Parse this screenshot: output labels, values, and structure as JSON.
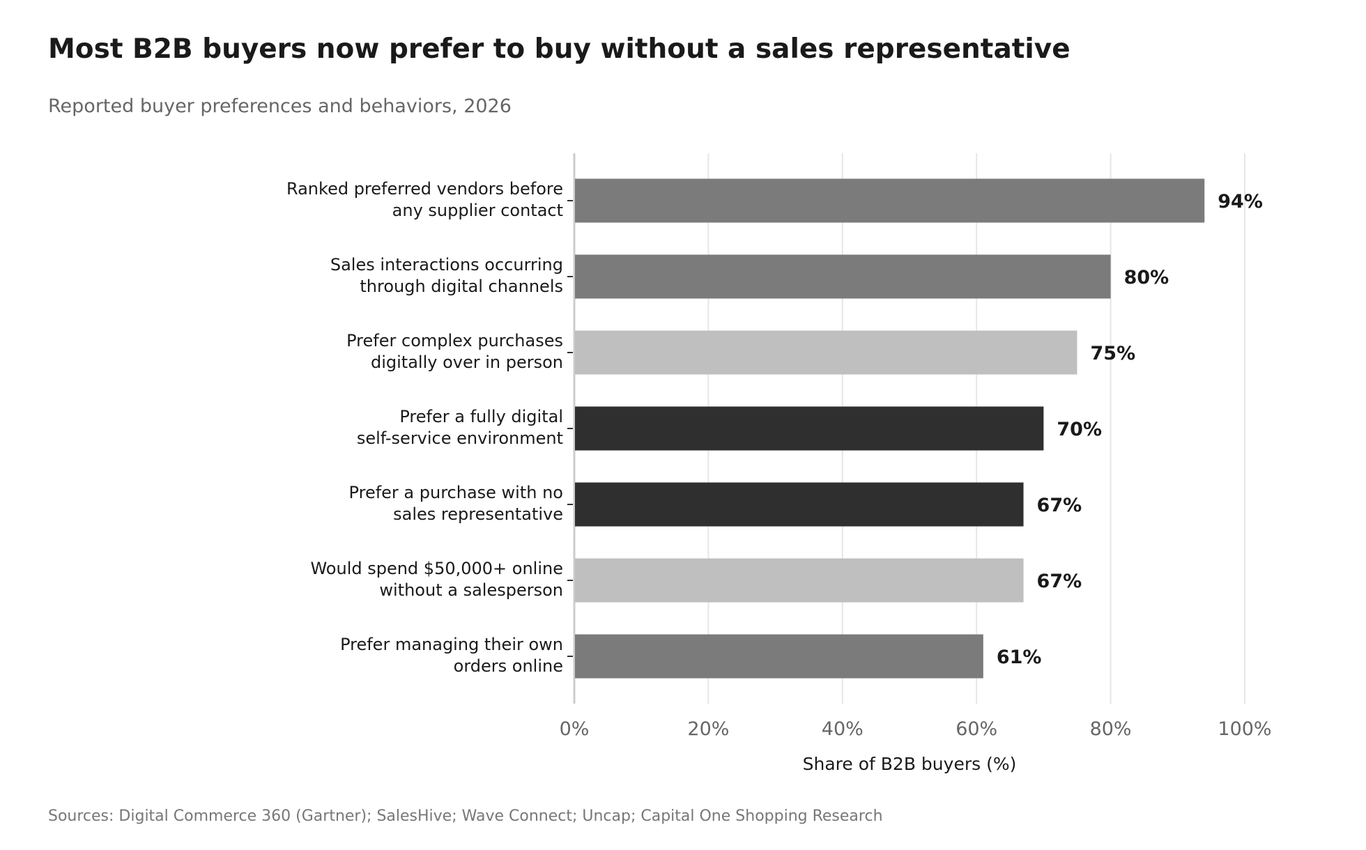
{
  "chart_data": {
    "type": "bar",
    "orientation": "horizontal",
    "title": "Most B2B buyers now prefer to buy without a sales representative",
    "subtitle": "Reported buyer preferences and behaviors, 2026",
    "xlabel": "Share of B2B buyers (%)",
    "ylabel": "",
    "xlim": [
      0,
      100
    ],
    "x_ticks": [
      "0%",
      "20%",
      "40%",
      "60%",
      "80%",
      "100%"
    ],
    "grid": "vertical",
    "categories": [
      [
        "Ranked preferred vendors before",
        "any supplier contact"
      ],
      [
        "Sales interactions occurring",
        "through digital channels"
      ],
      [
        "Prefer complex purchases",
        "digitally over in person"
      ],
      [
        "Prefer a fully digital",
        "self-service environment"
      ],
      [
        "Prefer a purchase with no",
        "sales representative"
      ],
      [
        "Would spend $50,000+ online",
        "without a salesperson"
      ],
      [
        "Prefer managing their own",
        "orders online"
      ]
    ],
    "values": [
      94,
      80,
      75,
      70,
      67,
      67,
      61
    ],
    "value_labels": [
      "94%",
      "80%",
      "75%",
      "70%",
      "67%",
      "67%",
      "61%"
    ],
    "bar_colors": [
      "#7b7b7b",
      "#7b7b7b",
      "#bfbfbf",
      "#2f2f2f",
      "#2f2f2f",
      "#bfbfbf",
      "#7b7b7b"
    ],
    "source": "Sources: Digital Commerce 360 (Gartner); SalesHive; Wave Connect; Uncap; Capital One Shopping Research"
  }
}
